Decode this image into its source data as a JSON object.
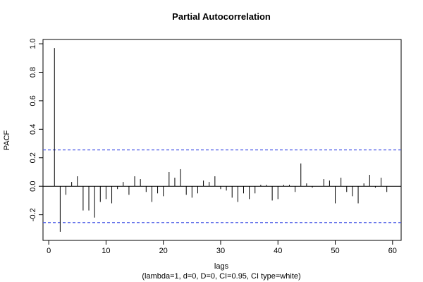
{
  "chart_data": {
    "type": "bar",
    "title": "Partial Autocorrelation",
    "xlabel": "lags",
    "subtitle": "(lambda=1, d=0, D=0, CI=0.95, CI type=white)",
    "ylabel": "PACF",
    "x_ticks": [
      0,
      10,
      20,
      30,
      40,
      50,
      60
    ],
    "y_ticks": [
      -0.2,
      0.0,
      0.2,
      0.4,
      0.6,
      0.8,
      1.0
    ],
    "y_tick_labels": [
      "-0.2",
      "0.0",
      "0.2",
      "0.4",
      "0.6",
      "0.8",
      "1.0"
    ],
    "xlim": [
      -1,
      61.5
    ],
    "ylim": [
      -0.38,
      1.03
    ],
    "confidence_interval": [
      -0.255,
      0.255
    ],
    "ci_color": "#4f5ee8",
    "lags": [
      1,
      2,
      3,
      4,
      5,
      6,
      7,
      8,
      9,
      10,
      11,
      12,
      13,
      14,
      15,
      16,
      17,
      18,
      19,
      20,
      21,
      22,
      23,
      24,
      25,
      26,
      27,
      28,
      29,
      30,
      31,
      32,
      33,
      34,
      35,
      36,
      37,
      38,
      39,
      40,
      41,
      42,
      43,
      44,
      45,
      46,
      47,
      48,
      49,
      50,
      51,
      52,
      53,
      54,
      55,
      56,
      57,
      58,
      59
    ],
    "values": [
      0.97,
      -0.32,
      -0.06,
      0.03,
      0.07,
      -0.17,
      -0.17,
      -0.22,
      -0.11,
      -0.09,
      -0.12,
      -0.02,
      0.03,
      -0.06,
      0.07,
      0.05,
      -0.04,
      -0.11,
      -0.05,
      -0.07,
      0.1,
      0.06,
      0.12,
      -0.06,
      -0.08,
      -0.05,
      0.04,
      0.03,
      0.07,
      -0.02,
      -0.03,
      -0.08,
      -0.11,
      -0.05,
      -0.09,
      -0.05,
      0.01,
      0.01,
      -0.1,
      -0.09,
      0.01,
      0.01,
      -0.04,
      0.16,
      0.02,
      -0.01,
      0.0,
      0.05,
      0.04,
      -0.12,
      0.06,
      -0.04,
      -0.07,
      -0.12,
      0.02,
      0.08,
      -0.01,
      0.06,
      -0.04
    ]
  }
}
